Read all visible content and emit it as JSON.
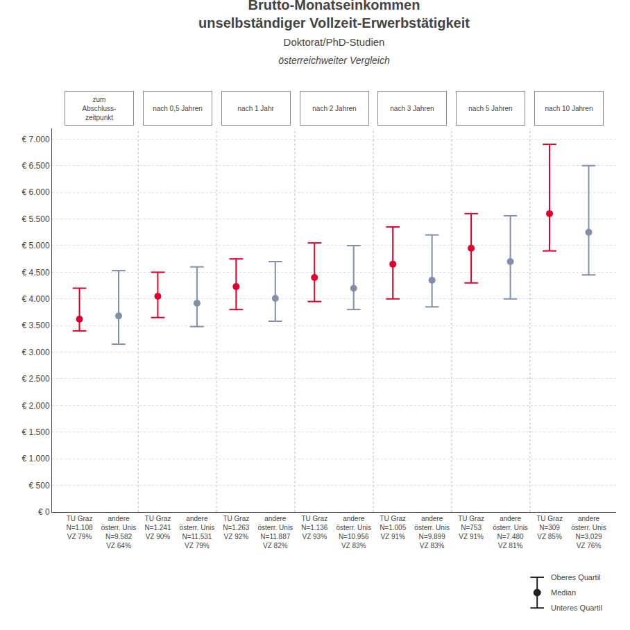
{
  "chart_data": {
    "type": "dot_range",
    "title": "Brutto-Monatseinkommen\nunselbständiger Vollzeit-Erwerbstätigkeit",
    "subtitle": "Doktorat/PhD-Studien\nösterreichweiter Vergleich",
    "categories": [
      "zum\nAbschluss-\nzeitpunkt",
      "nach 0,5 Jahren",
      "nach 1 Jahr",
      "nach 2 Jahren",
      "nach 3 Jahren",
      "nach 5 Jahren",
      "nach 10 Jahren"
    ],
    "series": [
      {
        "color": "#e0002a",
        "values": [
          3620,
          4050,
          4230,
          4400,
          4650,
          4950,
          5600
        ],
        "q1": [
          3400,
          3650,
          3800,
          3950,
          4000,
          4300,
          4900
        ],
        "q3": [
          4200,
          4500,
          4750,
          5050,
          5350,
          5600,
          6900
        ],
        "labels": [
          "TU Graz\nN=1.108\nVZ 79%",
          "TU Graz\nN=1.241\nVZ 90%",
          "TU Graz\nN=1.263\nVZ 92%",
          "TU Graz\nN=1.136\nVZ 93%",
          "TU Graz\nN=1.005\nVZ 91%",
          "TU Graz\nN=753\nVZ 91%",
          "TU Graz\nN=309\nVZ 85%"
        ]
      },
      {
        "color": "#8090a8",
        "values": [
          3680,
          3920,
          4010,
          4200,
          4350,
          4700,
          5250
        ],
        "q1": [
          3150,
          3480,
          3580,
          3800,
          3850,
          4000,
          4450
        ],
        "q3": [
          4530,
          4600,
          4700,
          5000,
          5200,
          5560,
          6500
        ],
        "labels": [
          "andere\nösterr. Unis\nN=9.582\nVZ 64%",
          "andere\nösterr. Unis\nN=11.531\nVZ 79%",
          "andere\nösterr. Unis\nN=11.887\nVZ 82%",
          "andere\nösterr. Unis\nN=10.956\nVZ 83%",
          "andere\nösterr. Unis\nN=9.899\nVZ 83%",
          "andere\nösterr. Unis\nN=7.480\nVZ 81%",
          "andere\nösterr. Unis\nN=3.029\nVZ 76%"
        ]
      }
    ],
    "ylim": [
      0,
      7200
    ],
    "yticks": [
      {
        "value": 0,
        "label": "€ 0"
      },
      {
        "value": 500,
        "label": "€ 500"
      },
      {
        "value": 1000,
        "label": "€ 1.000"
      },
      {
        "value": 1500,
        "label": "€ 1.500"
      },
      {
        "value": 2000,
        "label": "€ 2.000"
      },
      {
        "value": 2500,
        "label": "€ 2.500"
      },
      {
        "value": 3000,
        "label": "€ 3.000"
      },
      {
        "value": 3500,
        "label": "€ 3.500"
      },
      {
        "value": 4000,
        "label": "€ 4.000"
      },
      {
        "value": 4500,
        "label": "€ 4.500"
      },
      {
        "value": 5000,
        "label": "€ 5.000"
      },
      {
        "value": 5500,
        "label": "€ 5.500"
      },
      {
        "value": 6000,
        "label": "€ 6.000"
      },
      {
        "value": 6500,
        "label": "€ 6.500"
      },
      {
        "value": 7000,
        "label": "€ 7.000"
      }
    ],
    "grid": true,
    "annotations": {
      "q3": "Oberes Quartil",
      "median": "Median",
      "q1": "Unteres Quartil"
    }
  }
}
